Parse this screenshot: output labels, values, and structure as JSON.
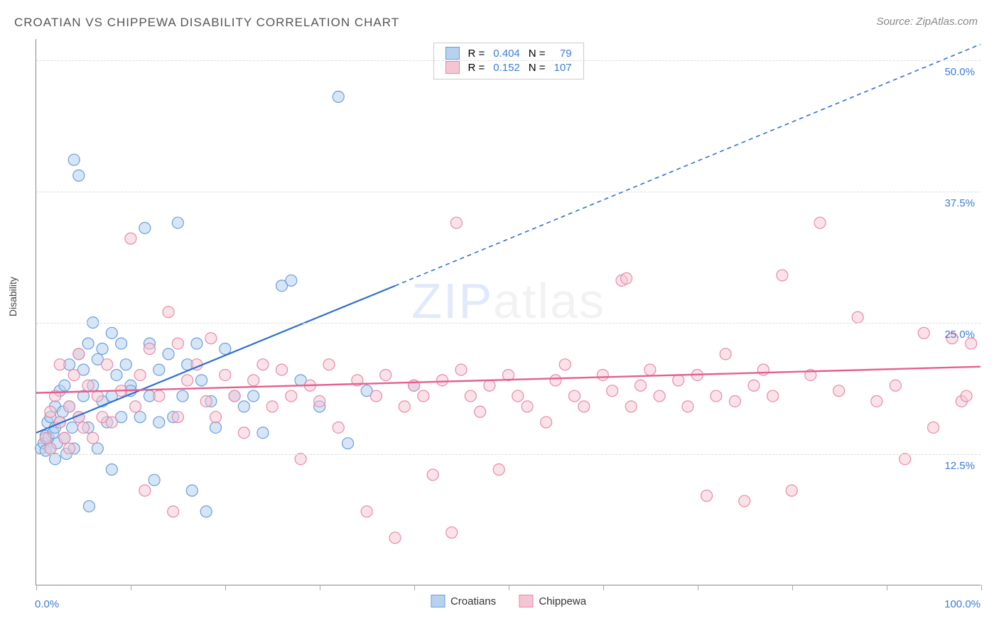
{
  "title": "CROATIAN VS CHIPPEWA DISABILITY CORRELATION CHART",
  "source": "Source: ZipAtlas.com",
  "watermark": {
    "part1": "ZIP",
    "part2": "atlas"
  },
  "ylabel": "Disability",
  "chart": {
    "type": "scatter",
    "xlim": [
      0,
      100
    ],
    "ylim": [
      0,
      52
    ],
    "x_ticks": [
      0,
      10,
      20,
      30,
      40,
      50,
      60,
      70,
      80,
      90,
      100
    ],
    "y_gridlines": [
      12.5,
      25.0,
      37.5,
      50.0
    ],
    "y_labels": [
      "12.5%",
      "25.0%",
      "37.5%",
      "50.0%"
    ],
    "x_labels": {
      "min": "0.0%",
      "max": "100.0%"
    },
    "background_color": "#ffffff",
    "grid_color": "#dddddd",
    "axis_color": "#888888",
    "marker_radius": 8,
    "marker_stroke_width": 1.2,
    "label_fontsize": 15,
    "title_fontsize": 17
  },
  "series": {
    "croatians": {
      "label": "Croatians",
      "fill": "#b7d1f1",
      "stroke": "#6a9edb",
      "fill_opacity": 0.55,
      "R": "0.404",
      "N": "79",
      "R_color": "#3b7dd8",
      "trend": {
        "solid": {
          "x1": 0,
          "y1": 14.5,
          "x2": 38,
          "y2": 28.5
        },
        "dashed": {
          "x1": 38,
          "y1": 28.5,
          "x2": 100,
          "y2": 51.5
        },
        "color": "#2f6fd0",
        "width": 2.2,
        "dash": "6,5"
      },
      "points": [
        [
          0.5,
          13.0
        ],
        [
          0.8,
          13.5
        ],
        [
          1.0,
          14.2
        ],
        [
          1.0,
          12.8
        ],
        [
          1.2,
          15.5
        ],
        [
          1.3,
          14.0
        ],
        [
          1.5,
          13.0
        ],
        [
          1.5,
          16.0
        ],
        [
          1.8,
          14.5
        ],
        [
          2.0,
          17.0
        ],
        [
          2.0,
          15.0
        ],
        [
          2.0,
          12.0
        ],
        [
          2.2,
          13.5
        ],
        [
          2.5,
          18.5
        ],
        [
          2.5,
          15.5
        ],
        [
          2.8,
          16.5
        ],
        [
          3.0,
          14.0
        ],
        [
          3.0,
          19.0
        ],
        [
          3.2,
          12.5
        ],
        [
          3.5,
          21.0
        ],
        [
          3.5,
          17.0
        ],
        [
          3.8,
          15.0
        ],
        [
          4.0,
          40.5
        ],
        [
          4.0,
          13.0
        ],
        [
          4.5,
          22.0
        ],
        [
          4.5,
          16.0
        ],
        [
          4.5,
          39.0
        ],
        [
          5.0,
          18.0
        ],
        [
          5.0,
          20.5
        ],
        [
          5.5,
          15.0
        ],
        [
          5.5,
          23.0
        ],
        [
          5.6,
          7.5
        ],
        [
          6.0,
          25.0
        ],
        [
          6.0,
          19.0
        ],
        [
          6.5,
          21.5
        ],
        [
          6.5,
          13.0
        ],
        [
          7.0,
          17.5
        ],
        [
          7.0,
          22.5
        ],
        [
          7.5,
          15.5
        ],
        [
          8.0,
          24.0
        ],
        [
          8.0,
          18.0
        ],
        [
          8.0,
          11.0
        ],
        [
          8.5,
          20.0
        ],
        [
          9.0,
          23.0
        ],
        [
          9.0,
          16.0
        ],
        [
          9.5,
          21.0
        ],
        [
          10.0,
          19.0
        ],
        [
          10.0,
          18.5
        ],
        [
          11.0,
          16.0
        ],
        [
          11.5,
          34.0
        ],
        [
          12.0,
          23.0
        ],
        [
          12.0,
          18.0
        ],
        [
          12.5,
          10.0
        ],
        [
          13.0,
          20.5
        ],
        [
          13.0,
          15.5
        ],
        [
          14.0,
          22.0
        ],
        [
          14.5,
          16.0
        ],
        [
          15.0,
          34.5
        ],
        [
          15.5,
          18.0
        ],
        [
          16.0,
          21.0
        ],
        [
          16.5,
          9.0
        ],
        [
          17.0,
          23.0
        ],
        [
          17.5,
          19.5
        ],
        [
          18.0,
          7.0
        ],
        [
          18.5,
          17.5
        ],
        [
          19.0,
          15.0
        ],
        [
          20.0,
          22.5
        ],
        [
          21.0,
          18.0
        ],
        [
          22.0,
          17.0
        ],
        [
          23.0,
          18.0
        ],
        [
          24.0,
          14.5
        ],
        [
          26.0,
          28.5
        ],
        [
          27.0,
          29.0
        ],
        [
          28.0,
          19.5
        ],
        [
          30.0,
          17.0
        ],
        [
          32.0,
          46.5
        ],
        [
          33.0,
          13.5
        ],
        [
          35.0,
          18.5
        ],
        [
          40.0,
          19.0
        ]
      ]
    },
    "chippewa": {
      "label": "Chippewa",
      "fill": "#f6c5d4",
      "stroke": "#e88aa6",
      "fill_opacity": 0.5,
      "R": "0.152",
      "N": "107",
      "R_color": "#e05a88",
      "trend": {
        "solid": {
          "x1": 0,
          "y1": 18.3,
          "x2": 100,
          "y2": 20.8
        },
        "color": "#e65f8e",
        "width": 2.4
      },
      "points": [
        [
          1.0,
          14.0
        ],
        [
          1.5,
          16.5
        ],
        [
          1.5,
          13.0
        ],
        [
          2.0,
          18.0
        ],
        [
          2.5,
          15.5
        ],
        [
          2.5,
          21.0
        ],
        [
          3.0,
          14.0
        ],
        [
          3.5,
          17.0
        ],
        [
          3.5,
          13.0
        ],
        [
          4.0,
          20.0
        ],
        [
          4.5,
          16.0
        ],
        [
          4.5,
          22.0
        ],
        [
          5.0,
          15.0
        ],
        [
          5.5,
          19.0
        ],
        [
          6.0,
          14.0
        ],
        [
          6.5,
          18.0
        ],
        [
          7.0,
          16.0
        ],
        [
          7.5,
          21.0
        ],
        [
          8.0,
          15.5
        ],
        [
          9.0,
          18.5
        ],
        [
          10.0,
          33.0
        ],
        [
          10.5,
          17.0
        ],
        [
          11.0,
          20.0
        ],
        [
          11.5,
          9.0
        ],
        [
          12.0,
          22.5
        ],
        [
          13.0,
          18.0
        ],
        [
          14.0,
          26.0
        ],
        [
          14.5,
          7.0
        ],
        [
          15.0,
          16.0
        ],
        [
          15.0,
          23.0
        ],
        [
          16.0,
          19.5
        ],
        [
          17.0,
          21.0
        ],
        [
          18.0,
          17.5
        ],
        [
          18.5,
          23.5
        ],
        [
          19.0,
          16.0
        ],
        [
          20.0,
          20.0
        ],
        [
          21.0,
          18.0
        ],
        [
          22.0,
          14.5
        ],
        [
          23.0,
          19.5
        ],
        [
          24.0,
          21.0
        ],
        [
          25.0,
          17.0
        ],
        [
          26.0,
          20.5
        ],
        [
          27.0,
          18.0
        ],
        [
          28.0,
          12.0
        ],
        [
          29.0,
          19.0
        ],
        [
          30.0,
          17.5
        ],
        [
          31.0,
          21.0
        ],
        [
          32.0,
          15.0
        ],
        [
          34.0,
          19.5
        ],
        [
          35.0,
          7.0
        ],
        [
          36.0,
          18.0
        ],
        [
          37.0,
          20.0
        ],
        [
          38.0,
          4.5
        ],
        [
          39.0,
          17.0
        ],
        [
          40.0,
          19.0
        ],
        [
          41.0,
          18.0
        ],
        [
          42.0,
          10.5
        ],
        [
          43.0,
          19.5
        ],
        [
          44.0,
          5.0
        ],
        [
          44.5,
          34.5
        ],
        [
          45.0,
          20.5
        ],
        [
          46.0,
          18.0
        ],
        [
          47.0,
          16.5
        ],
        [
          48.0,
          19.0
        ],
        [
          49.0,
          11.0
        ],
        [
          50.0,
          20.0
        ],
        [
          51.0,
          18.0
        ],
        [
          52.0,
          17.0
        ],
        [
          54.0,
          15.5
        ],
        [
          55.0,
          19.5
        ],
        [
          56.0,
          21.0
        ],
        [
          57.0,
          18.0
        ],
        [
          58.0,
          17.0
        ],
        [
          60.0,
          20.0
        ],
        [
          61.0,
          18.5
        ],
        [
          62.0,
          29.0
        ],
        [
          62.5,
          29.2
        ],
        [
          63.0,
          17.0
        ],
        [
          64.0,
          19.0
        ],
        [
          65.0,
          20.5
        ],
        [
          66.0,
          18.0
        ],
        [
          68.0,
          19.5
        ],
        [
          69.0,
          17.0
        ],
        [
          70.0,
          20.0
        ],
        [
          71.0,
          8.5
        ],
        [
          72.0,
          18.0
        ],
        [
          73.0,
          22.0
        ],
        [
          74.0,
          17.5
        ],
        [
          75.0,
          8.0
        ],
        [
          76.0,
          19.0
        ],
        [
          77.0,
          20.5
        ],
        [
          78.0,
          18.0
        ],
        [
          79.0,
          29.5
        ],
        [
          80.0,
          9.0
        ],
        [
          82.0,
          20.0
        ],
        [
          83.0,
          34.5
        ],
        [
          85.0,
          18.5
        ],
        [
          87.0,
          25.5
        ],
        [
          89.0,
          17.5
        ],
        [
          91.0,
          19.0
        ],
        [
          92.0,
          12.0
        ],
        [
          94.0,
          24.0
        ],
        [
          95.0,
          15.0
        ],
        [
          97.0,
          23.5
        ],
        [
          98.0,
          17.5
        ],
        [
          98.5,
          18.0
        ],
        [
          99.0,
          23.0
        ]
      ]
    }
  },
  "legend_top": {
    "r_label": "R =",
    "n_label": "N ="
  },
  "legend_bottom": {
    "series1": "Croatians",
    "series2": "Chippewa"
  }
}
